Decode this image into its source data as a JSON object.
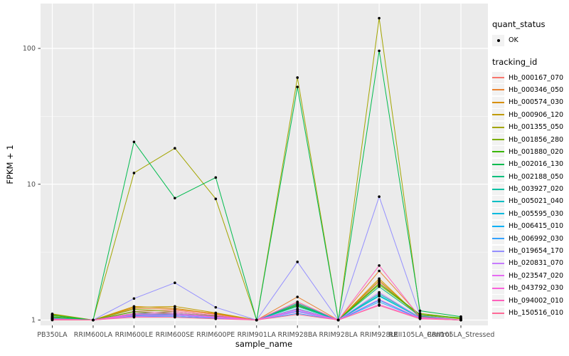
{
  "colors": {
    "panel_bg": "#EBEBEB",
    "grid": "#FFFFFF",
    "point": "#000000",
    "axis_text": "#4D4D4D",
    "tick": "#333333"
  },
  "legend": {
    "quant_status_title": "quant_status",
    "quant_status_value": "OK",
    "tracking_title": "tracking_id"
  },
  "chart_data": {
    "type": "line",
    "title": "",
    "xlabel": "sample_name",
    "ylabel": "FPKM + 1",
    "y_scale": "log10",
    "ylim": [
      1,
      210
    ],
    "y_ticks": [
      1,
      10,
      100
    ],
    "y_minor_ticks": [
      3.162,
      31.62
    ],
    "grid": true,
    "legend_position": "right",
    "point_marker": "black dot (quant_status OK) on every observation",
    "categories": [
      "PB350LA",
      "RRIM600LA",
      "RRIM600LE",
      "RRIM600SE",
      "RRIM600PE",
      "RRIM901LA",
      "RRIM928BA",
      "RRIM928LA",
      "RRIM928LE",
      "RRII105LA_Control",
      "RRII105LA_Stressed"
    ],
    "series": [
      {
        "name": "Hb_000167_070",
        "color": "#F8766D",
        "values": [
          1.05,
          1.0,
          1.16,
          1.18,
          1.1,
          1.0,
          1.32,
          1.0,
          1.92,
          1.05,
          1.0
        ]
      },
      {
        "name": "Hb_000346_050",
        "color": "#EA8331",
        "values": [
          1.06,
          1.0,
          1.22,
          1.2,
          1.12,
          1.0,
          1.48,
          1.0,
          2.3,
          1.07,
          1.0
        ]
      },
      {
        "name": "Hb_000574_030",
        "color": "#D89000",
        "values": [
          1.05,
          1.0,
          1.26,
          1.22,
          1.11,
          1.0,
          1.36,
          1.0,
          2.02,
          1.05,
          1.0
        ]
      },
      {
        "name": "Hb_000906_120",
        "color": "#C09B00",
        "values": [
          1.09,
          1.0,
          1.24,
          1.26,
          1.13,
          1.0,
          1.3,
          1.0,
          1.96,
          1.06,
          1.0
        ]
      },
      {
        "name": "Hb_001355_050",
        "color": "#A3A500",
        "values": [
          1.11,
          1.0,
          12.1,
          18.4,
          7.8,
          1.0,
          61.0,
          1.0,
          167.0,
          1.12,
          1.03
        ]
      },
      {
        "name": "Hb_001856_280",
        "color": "#7CAE00",
        "values": [
          1.1,
          1.0,
          1.2,
          1.15,
          1.08,
          1.0,
          1.26,
          1.0,
          1.82,
          1.09,
          1.02
        ]
      },
      {
        "name": "Hb_001880_020",
        "color": "#39B600",
        "values": [
          1.06,
          1.0,
          1.15,
          1.12,
          1.07,
          1.0,
          1.28,
          1.0,
          1.86,
          1.1,
          1.04
        ]
      },
      {
        "name": "Hb_002016_130",
        "color": "#00BB4E",
        "values": [
          1.08,
          1.0,
          20.5,
          7.9,
          11.2,
          1.0,
          52.0,
          1.0,
          96.0,
          1.17,
          1.06
        ]
      },
      {
        "name": "Hb_002188_050",
        "color": "#00BF7D",
        "values": [
          1.04,
          1.0,
          1.12,
          1.1,
          1.06,
          1.0,
          1.3,
          1.0,
          1.76,
          1.07,
          1.0
        ]
      },
      {
        "name": "Hb_003927_020",
        "color": "#00C1A3",
        "values": [
          1.03,
          1.0,
          1.1,
          1.12,
          1.06,
          1.0,
          1.33,
          1.0,
          1.56,
          1.05,
          1.0
        ]
      },
      {
        "name": "Hb_005021_040",
        "color": "#00BFC4",
        "values": [
          1.03,
          1.0,
          1.09,
          1.1,
          1.05,
          1.0,
          1.26,
          1.0,
          1.5,
          1.04,
          1.0
        ]
      },
      {
        "name": "Hb_005595_030",
        "color": "#00BADE",
        "values": [
          1.02,
          1.0,
          1.1,
          1.08,
          1.04,
          1.0,
          1.21,
          1.0,
          1.52,
          1.04,
          1.0
        ]
      },
      {
        "name": "Hb_006415_010",
        "color": "#00B0F6",
        "values": [
          1.02,
          1.0,
          1.07,
          1.08,
          1.04,
          1.0,
          1.16,
          1.0,
          1.4,
          1.03,
          1.0
        ]
      },
      {
        "name": "Hb_006992_030",
        "color": "#35A2FF",
        "values": [
          1.02,
          1.0,
          1.06,
          1.06,
          1.03,
          1.0,
          1.12,
          1.0,
          1.36,
          1.03,
          1.0
        ]
      },
      {
        "name": "Hb_019654_170",
        "color": "#9590FF",
        "values": [
          1.0,
          1.0,
          1.44,
          1.88,
          1.24,
          1.0,
          2.68,
          1.0,
          8.1,
          1.08,
          1.0
        ]
      },
      {
        "name": "Hb_020831_070",
        "color": "#C77CFF",
        "values": [
          1.02,
          1.0,
          1.06,
          1.08,
          1.04,
          1.0,
          1.18,
          1.0,
          1.6,
          1.04,
          1.0
        ]
      },
      {
        "name": "Hb_023547_020",
        "color": "#E76BF3",
        "values": [
          1.02,
          1.0,
          1.08,
          1.1,
          1.05,
          1.0,
          1.15,
          1.0,
          1.42,
          1.03,
          1.0
        ]
      },
      {
        "name": "Hb_043792_030",
        "color": "#FA62DB",
        "values": [
          1.01,
          1.0,
          1.1,
          1.12,
          1.06,
          1.0,
          1.2,
          1.0,
          1.3,
          1.03,
          1.0
        ]
      },
      {
        "name": "Hb_094002_010",
        "color": "#FF62BC",
        "values": [
          1.02,
          1.0,
          1.12,
          1.15,
          1.08,
          1.0,
          1.36,
          1.0,
          2.52,
          1.05,
          1.0
        ]
      },
      {
        "name": "Hb_150516_010",
        "color": "#FF6A98",
        "values": [
          1.0,
          1.0,
          1.05,
          1.05,
          1.02,
          1.0,
          1.1,
          1.0,
          1.28,
          1.02,
          1.0
        ]
      }
    ]
  }
}
